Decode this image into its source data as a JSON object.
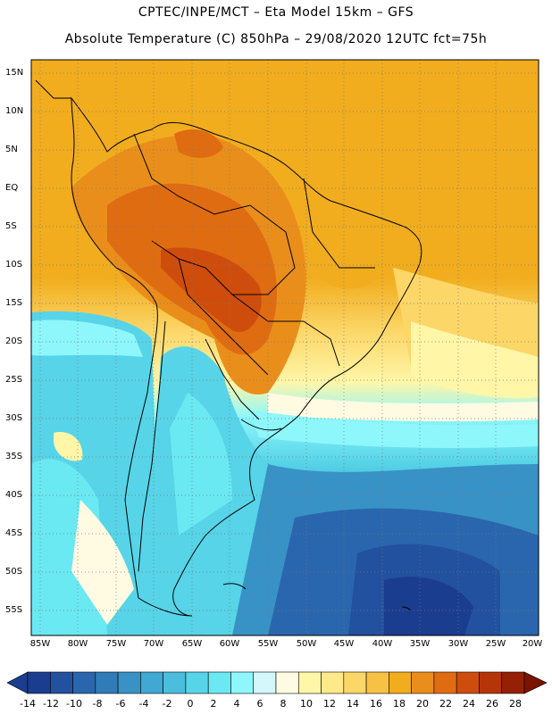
{
  "header": {
    "line1": "CPTEC/INPE/MCT –  Eta Model 15km – GFS",
    "line2": "Absolute Temperature (C) 850hPa – 29/08/2020 12UTC fct=75h"
  },
  "axes": {
    "lat_labels": [
      "15N",
      "10N",
      "5N",
      "EQ",
      "5S",
      "10S",
      "15S",
      "20S",
      "25S",
      "30S",
      "35S",
      "40S",
      "45S",
      "50S",
      "55S"
    ],
    "lon_labels": [
      "85W",
      "80W",
      "75W",
      "70W",
      "65W",
      "60W",
      "55W",
      "50W",
      "45W",
      "40W",
      "35W",
      "30W",
      "25W",
      "20W"
    ]
  },
  "colorbar": {
    "labels": [
      "-14",
      "-12",
      "-10",
      "-8",
      "-6",
      "-4",
      "-2",
      "0",
      "2",
      "4",
      "6",
      "8",
      "10",
      "12",
      "14",
      "16",
      "18",
      "20",
      "22",
      "24",
      "26",
      "28"
    ],
    "colors": [
      "#1b3d8f",
      "#22519f",
      "#2a66ad",
      "#2f7cb9",
      "#3892c6",
      "#40a8d2",
      "#4bbedd",
      "#57d4e8",
      "#6ae9f2",
      "#8ef7fb",
      "#d4f7fb",
      "#fffbe2",
      "#fff6a8",
      "#ffe98a",
      "#fcd667",
      "#f7c244",
      "#f1ad1e",
      "#ea8e1b",
      "#e06c12",
      "#cf4d0c",
      "#b63508",
      "#962004"
    ]
  }
}
